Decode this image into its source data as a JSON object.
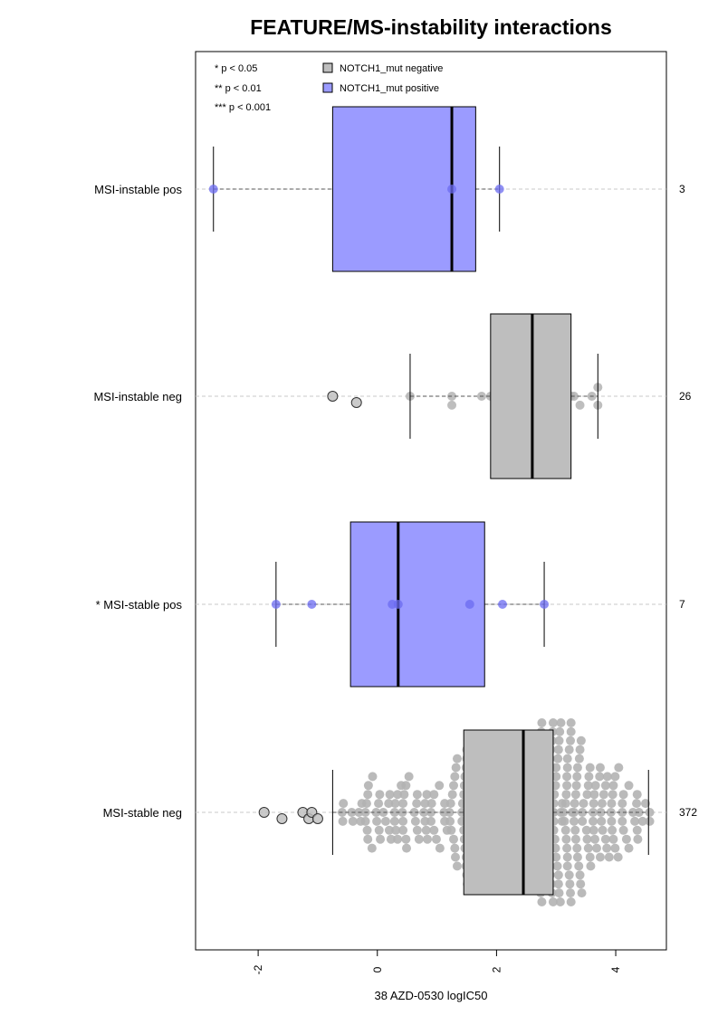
{
  "chart_data": {
    "type": "box",
    "title": "FEATURE/MS-instability interactions",
    "xlabel": "38 AZD-0530 logIC50",
    "ylabel": "",
    "xlim": [
      -3.05,
      4.85
    ],
    "x_ticks": [
      -2,
      0,
      2,
      4
    ],
    "grid": false,
    "legend_position": "top-left",
    "significance_notes": [
      "* p < 0.05",
      "** p < 0.01",
      "*** p < 0.001"
    ],
    "legend": [
      {
        "name": "NOTCH1_mut negative",
        "color": "#bebebe"
      },
      {
        "name": "NOTCH1_mut positive",
        "color": "#9b9bff"
      }
    ],
    "colors": {
      "negative_fill": "#bebebe",
      "positive_fill": "#9b9bff",
      "negative_point": "#b3b3b3",
      "positive_point": "#6b6bf0"
    },
    "groups": [
      {
        "label": "MSI-instable pos",
        "count": "3",
        "mutant": "positive",
        "whisker_low": -2.75,
        "q1": -0.75,
        "median": 1.25,
        "q3": 1.65,
        "whisker_high": 2.05,
        "outliers": [],
        "points": [
          -2.75,
          1.25,
          2.05
        ]
      },
      {
        "label": "MSI-instable neg",
        "count": "26",
        "mutant": "negative",
        "whisker_low": 0.55,
        "q1": 1.9,
        "median": 2.6,
        "q3": 3.25,
        "whisker_high": 3.7,
        "outliers": [
          -0.75,
          -0.35
        ],
        "points": [
          0.55,
          1.25,
          1.25,
          1.75,
          1.9,
          2.0,
          2.1,
          2.2,
          2.3,
          2.4,
          2.45,
          2.55,
          2.6,
          2.7,
          2.8,
          2.85,
          2.9,
          3.0,
          3.05,
          3.1,
          3.25,
          3.3,
          3.4,
          3.6,
          3.7,
          3.7
        ]
      },
      {
        "label": "* MSI-stable pos",
        "count": "7",
        "mutant": "positive",
        "whisker_low": -1.7,
        "q1": -0.45,
        "median": 0.35,
        "q3": 1.8,
        "whisker_high": 2.8,
        "outliers": [],
        "points": [
          -1.7,
          -1.1,
          0.25,
          0.35,
          1.55,
          2.1,
          2.8
        ]
      },
      {
        "label": "MSI-stable neg",
        "count": "372",
        "mutant": "negative",
        "whisker_low": -0.75,
        "q1": 1.45,
        "median": 2.45,
        "q3": 2.95,
        "whisker_high": 4.55,
        "outliers": [
          -1.9,
          -1.6,
          -1.25,
          -1.15,
          -1.1,
          -1.0
        ]
      }
    ]
  }
}
